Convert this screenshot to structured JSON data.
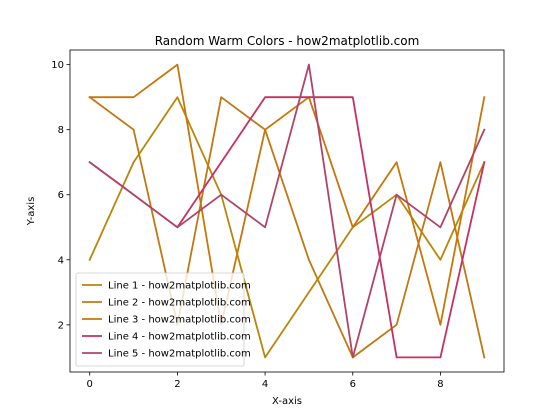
{
  "chart_data": {
    "type": "line",
    "title": "Random Warm Colors - how2matplotlib.com",
    "xlabel": "X-axis",
    "ylabel": "Y-axis",
    "x": [
      0,
      1,
      2,
      3,
      4,
      5,
      6,
      7,
      8,
      9
    ],
    "xlim": [
      -0.45,
      9.45
    ],
    "ylim": [
      0.55,
      10.45
    ],
    "xticks": [
      0,
      2,
      4,
      6,
      8
    ],
    "yticks": [
      2,
      4,
      6,
      8,
      10
    ],
    "grid": false,
    "legend_position": "lower-left",
    "series": [
      {
        "name": "Line 1 - how2matplotlib.com",
        "color": "#b8860b",
        "values": [
          4,
          7,
          9,
          6,
          1,
          3,
          5,
          6,
          4,
          7
        ]
      },
      {
        "name": "Line 2 - how2matplotlib.com",
        "color": "#c07812",
        "values": [
          9,
          8,
          2,
          9,
          8,
          4,
          1,
          2,
          7,
          1
        ]
      },
      {
        "name": "Line 3 - how2matplotlib.com",
        "color": "#c8760a",
        "values": [
          9,
          9,
          10,
          2,
          8,
          9,
          5,
          7,
          2,
          9
        ]
      },
      {
        "name": "Line 4 - how2matplotlib.com",
        "color": "#c7305d",
        "values": [
          7,
          6,
          5,
          7,
          9,
          9,
          9,
          1,
          1,
          7
        ]
      },
      {
        "name": "Line 5 - how2matplotlib.com",
        "color": "#b04468",
        "values": [
          7,
          6,
          5,
          6,
          5,
          10,
          1,
          6,
          5,
          8
        ]
      }
    ]
  }
}
